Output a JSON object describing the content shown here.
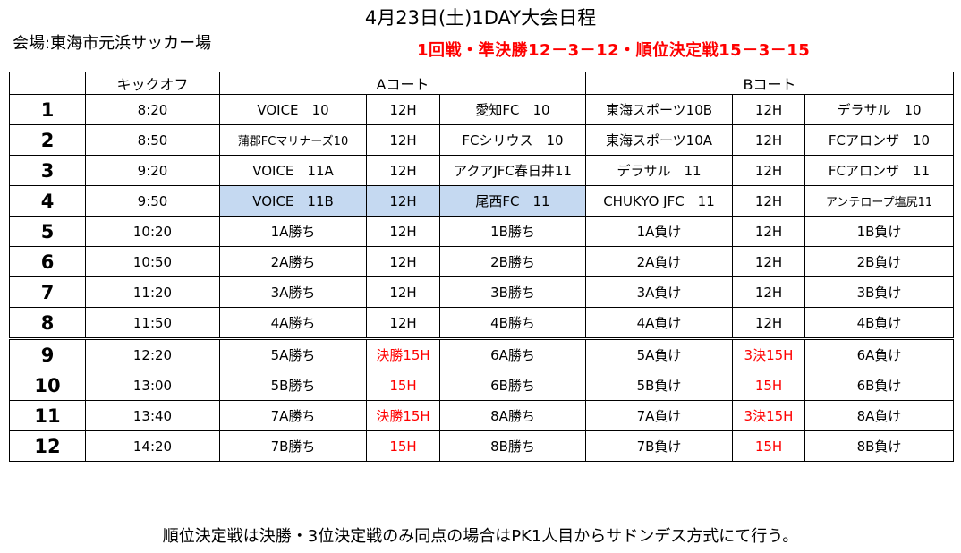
{
  "title": "4月23日(土)1DAY大会日程",
  "venue": "会場:東海市元浜サッカー場",
  "format": "1回戦・準決勝12－3－12・順位決定戦15－3－15",
  "headers": {
    "no": "",
    "kickoff": "キックオフ",
    "court_a": "Aコート",
    "court_b": "Bコート"
  },
  "rows": [
    {
      "no": "1",
      "time": "8:20",
      "a1": "VOICE　10",
      "am": "12H",
      "a2": "愛知FC　10",
      "b1": "東海スポーツ10B",
      "bm": "12H",
      "b2": "デラサル　10"
    },
    {
      "no": "2",
      "time": "8:50",
      "a1": "蒲郡FCマリナーズ10",
      "am": "12H",
      "a2": "FCシリウス　10",
      "b1": "東海スポーツ10A",
      "bm": "12H",
      "b2": "FCアロンザ　10"
    },
    {
      "no": "3",
      "time": "9:20",
      "a1": "VOICE　11A",
      "am": "12H",
      "a2": "アクアJFC春日井11",
      "b1": "デラサル　11",
      "bm": "12H",
      "b2": "FCアロンザ　11"
    },
    {
      "no": "4",
      "time": "9:50",
      "a1": "VOICE　11B",
      "am": "12H",
      "a2": "尾西FC　11",
      "b1": "CHUKYO JFC　11",
      "bm": "12H",
      "b2": "アンテロープ塩尻11"
    },
    {
      "no": "5",
      "time": "10:20",
      "a1": "1A勝ち",
      "am": "12H",
      "a2": "1B勝ち",
      "b1": "1A負け",
      "bm": "12H",
      "b2": "1B負け"
    },
    {
      "no": "6",
      "time": "10:50",
      "a1": "2A勝ち",
      "am": "12H",
      "a2": "2B勝ち",
      "b1": "2A負け",
      "bm": "12H",
      "b2": "2B負け"
    },
    {
      "no": "7",
      "time": "11:20",
      "a1": "3A勝ち",
      "am": "12H",
      "a2": "3B勝ち",
      "b1": "3A負け",
      "bm": "12H",
      "b2": "3B負け"
    },
    {
      "no": "8",
      "time": "11:50",
      "a1": "4A勝ち",
      "am": "12H",
      "a2": "4B勝ち",
      "b1": "4A負け",
      "bm": "12H",
      "b2": "4B負け"
    },
    {
      "no": "9",
      "time": "12:20",
      "a1": "5A勝ち",
      "am": "決勝15H",
      "a2": "6A勝ち",
      "b1": "5A負け",
      "bm": "3決15H",
      "b2": "6A負け"
    },
    {
      "no": "10",
      "time": "13:00",
      "a1": "5B勝ち",
      "am": "15H",
      "a2": "6B勝ち",
      "b1": "5B負け",
      "bm": "15H",
      "b2": "6B負け"
    },
    {
      "no": "11",
      "time": "13:40",
      "a1": "7A勝ち",
      "am": "決勝15H",
      "a2": "8A勝ち",
      "b1": "7A負け",
      "bm": "3決15H",
      "b2": "8A負け"
    },
    {
      "no": "12",
      "time": "14:20",
      "a1": "7B勝ち",
      "am": "15H",
      "a2": "8B勝ち",
      "b1": "7B負け",
      "bm": "15H",
      "b2": "8B負け"
    }
  ],
  "note": "順位決定戦は決勝・3位決定戦のみ同点の場合はPK1人目からサドンデス方式にて行う。"
}
